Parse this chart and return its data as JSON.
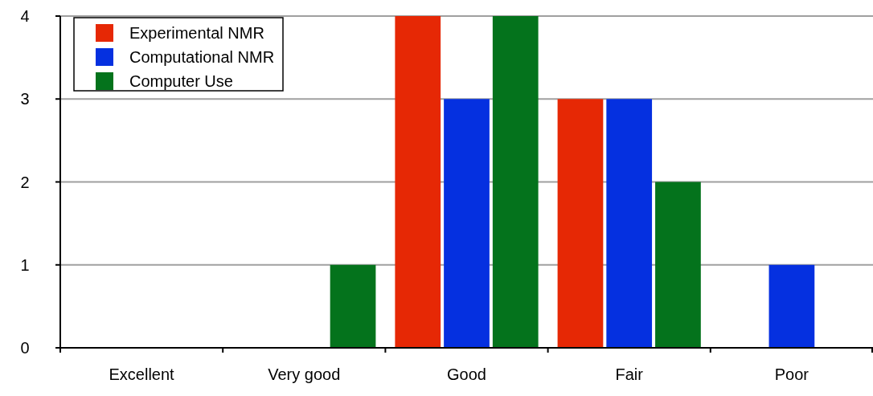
{
  "chart_data": {
    "type": "bar",
    "categories": [
      "Excellent",
      "Very good",
      "Good",
      "Fair",
      "Poor"
    ],
    "series": [
      {
        "name": "Experimental NMR",
        "color": "#e62805",
        "values": [
          0,
          0,
          4,
          3,
          0
        ]
      },
      {
        "name": "Computational NMR",
        "color": "#0530e0",
        "values": [
          0,
          0,
          3,
          3,
          1
        ]
      },
      {
        "name": "Computer Use",
        "color": "#04731c",
        "values": [
          0,
          1,
          4,
          2,
          0
        ]
      }
    ],
    "ylim": [
      0,
      4
    ],
    "yticks": [
      0,
      1,
      2,
      3,
      4
    ],
    "grid": "y",
    "legend": "top left"
  }
}
